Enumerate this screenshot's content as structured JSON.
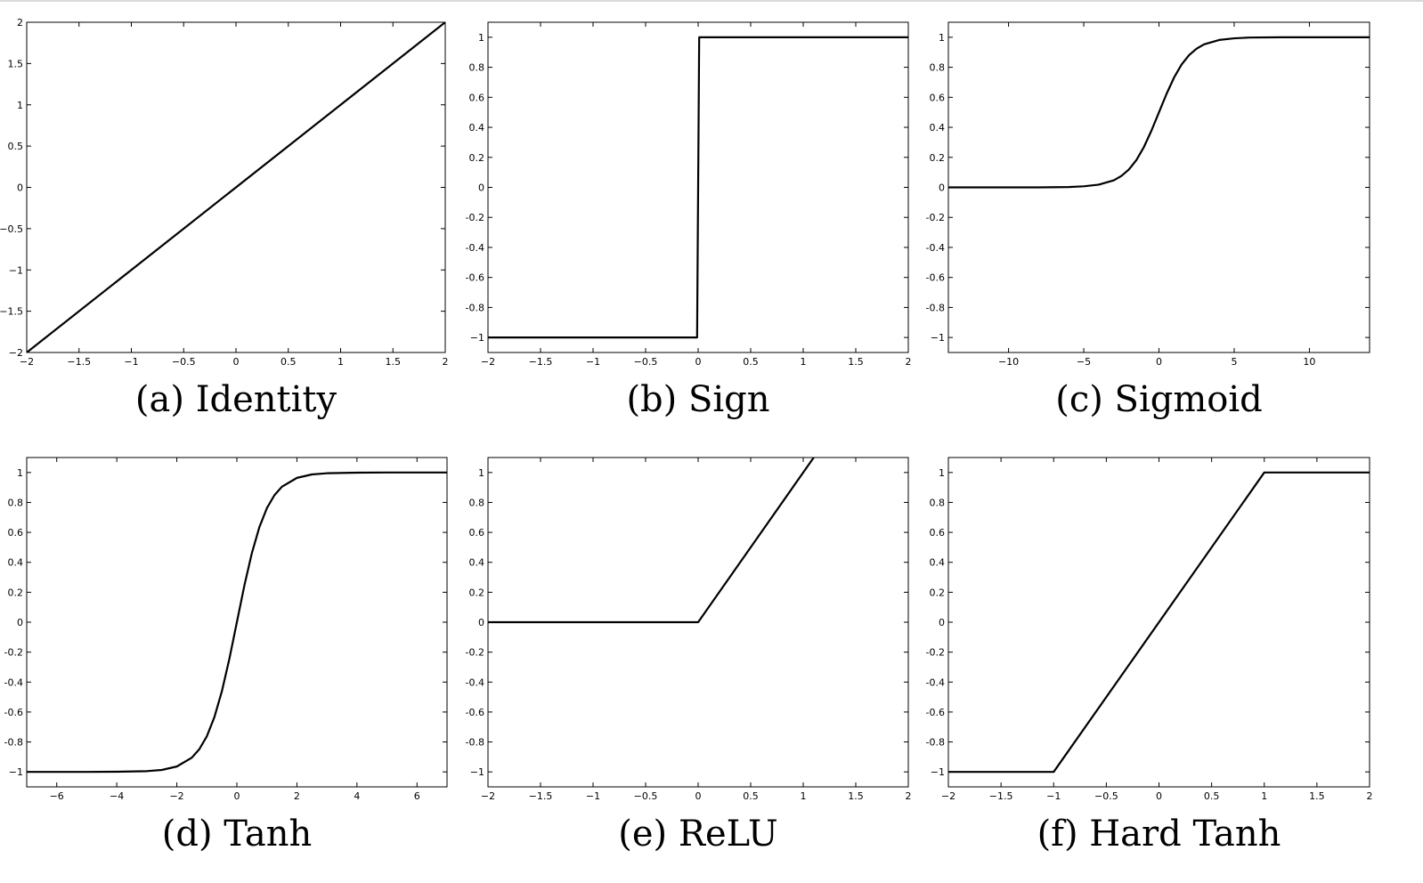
{
  "chart_data": [
    {
      "type": "line",
      "caption": "(a) Identity",
      "xlim": [
        -2,
        2
      ],
      "ylim": [
        -2,
        2
      ],
      "xticks": [
        -2,
        -1.5,
        -1,
        -0.5,
        0,
        0.5,
        1,
        1.5,
        2
      ],
      "xtick_labels": [
        "−2",
        "−1.5",
        "−1",
        "−0.5",
        "0",
        "0.5",
        "1",
        "1.5",
        "2"
      ],
      "yticks": [
        -2,
        -1.5,
        -1,
        -0.5,
        0,
        0.5,
        1,
        1.5,
        2
      ],
      "ytick_labels": [
        "−2",
        "−1.5",
        "−1",
        "−0.5",
        "0",
        "0.5",
        "1",
        "1.5",
        "2"
      ],
      "series": [
        {
          "x": [
            -2,
            2
          ],
          "y": [
            -2,
            2
          ]
        }
      ],
      "grid": false
    },
    {
      "type": "line",
      "caption": "(b) Sign",
      "xlim": [
        -2,
        2
      ],
      "ylim": [
        -1.1,
        1.1
      ],
      "xticks": [
        -2,
        -1.5,
        -1,
        -0.5,
        0,
        0.5,
        1,
        1.5,
        2
      ],
      "xtick_labels": [
        "−2",
        "−1.5",
        "−1",
        "−0.5",
        "0",
        "0.5",
        "1",
        "1.5",
        "2"
      ],
      "yticks": [
        -1,
        -0.8,
        -0.6,
        -0.4,
        -0.2,
        0,
        0.2,
        0.4,
        0.6,
        0.8,
        1
      ],
      "ytick_labels": [
        "−1",
        "-0.8",
        "-0.6",
        "-0.4",
        "-0.2",
        "0",
        "0.2",
        "0.4",
        "0.6",
        "0.8",
        "1"
      ],
      "series": [
        {
          "x": [
            -2,
            -0.01,
            0.01,
            2
          ],
          "y": [
            -1,
            -1,
            1,
            1
          ]
        }
      ],
      "grid": false
    },
    {
      "type": "line",
      "caption": "(c) Sigmoid",
      "xlim": [
        -14,
        14
      ],
      "ylim": [
        -1.1,
        1.1
      ],
      "xticks": [
        -10,
        -5,
        0,
        5,
        10
      ],
      "xtick_labels": [
        "−10",
        "−5",
        "0",
        "5",
        "10"
      ],
      "yticks": [
        -1,
        -0.8,
        -0.6,
        -0.4,
        -0.2,
        0,
        0.2,
        0.4,
        0.6,
        0.8,
        1
      ],
      "ytick_labels": [
        "−1",
        "-0.8",
        "-0.6",
        "-0.4",
        "-0.2",
        "0",
        "0.2",
        "0.4",
        "0.6",
        "0.8",
        "1"
      ],
      "series": [
        {
          "x": [
            -14,
            -10,
            -8,
            -6,
            -5,
            -4,
            -3,
            -2.5,
            -2,
            -1.5,
            -1,
            -0.5,
            0,
            0.5,
            1,
            1.5,
            2,
            2.5,
            3,
            4,
            5,
            6,
            8,
            10,
            14
          ],
          "y": [
            0,
            0,
            0,
            0.002,
            0.007,
            0.018,
            0.047,
            0.076,
            0.119,
            0.182,
            0.269,
            0.378,
            0.5,
            0.622,
            0.731,
            0.818,
            0.881,
            0.924,
            0.953,
            0.982,
            0.993,
            0.998,
            1,
            1,
            1
          ]
        }
      ],
      "grid": false
    },
    {
      "type": "line",
      "caption": "(d) Tanh",
      "xlim": [
        -7,
        7
      ],
      "ylim": [
        -1.1,
        1.1
      ],
      "xticks": [
        -6,
        -4,
        -2,
        0,
        2,
        4,
        6
      ],
      "xtick_labels": [
        "−6",
        "−4",
        "−2",
        "0",
        "2",
        "4",
        "6"
      ],
      "yticks": [
        -1,
        -0.8,
        -0.6,
        -0.4,
        -0.2,
        0,
        0.2,
        0.4,
        0.6,
        0.8,
        1
      ],
      "ytick_labels": [
        "−1",
        "-0.8",
        "-0.6",
        "-0.4",
        "-0.2",
        "0",
        "0.2",
        "0.4",
        "0.6",
        "0.8",
        "1"
      ],
      "series": [
        {
          "x": [
            -7,
            -5,
            -4,
            -3,
            -2.5,
            -2,
            -1.5,
            -1.25,
            -1,
            -0.75,
            -0.5,
            -0.25,
            0,
            0.25,
            0.5,
            0.75,
            1,
            1.25,
            1.5,
            2,
            2.5,
            3,
            4,
            5,
            7
          ],
          "y": [
            -1,
            -1,
            -0.999,
            -0.995,
            -0.987,
            -0.964,
            -0.905,
            -0.848,
            -0.762,
            -0.635,
            -0.462,
            -0.245,
            0,
            0.245,
            0.462,
            0.635,
            0.762,
            0.848,
            0.905,
            0.964,
            0.987,
            0.995,
            0.999,
            1,
            1
          ]
        }
      ],
      "grid": false
    },
    {
      "type": "line",
      "caption": "(e) ReLU",
      "xlim": [
        -2,
        2
      ],
      "ylim": [
        -1.1,
        1.1
      ],
      "xticks": [
        -2,
        -1.5,
        -1,
        -0.5,
        0,
        0.5,
        1,
        1.5,
        2
      ],
      "xtick_labels": [
        "−2",
        "−1.5",
        "−1",
        "−0.5",
        "0",
        "0.5",
        "1",
        "1.5",
        "2"
      ],
      "yticks": [
        -1,
        -0.8,
        -0.6,
        -0.4,
        -0.2,
        0,
        0.2,
        0.4,
        0.6,
        0.8,
        1
      ],
      "ytick_labels": [
        "−1",
        "-0.8",
        "-0.6",
        "-0.4",
        "-0.2",
        "0",
        "0.2",
        "0.4",
        "0.6",
        "0.8",
        "1"
      ],
      "series": [
        {
          "x": [
            -2,
            0,
            1.1
          ],
          "y": [
            0,
            0,
            1.1
          ]
        }
      ],
      "grid": false
    },
    {
      "type": "line",
      "caption": "(f) Hard Tanh",
      "xlim": [
        -2,
        2
      ],
      "ylim": [
        -1.1,
        1.1
      ],
      "xticks": [
        -2,
        -1.5,
        -1,
        -0.5,
        0,
        0.5,
        1,
        1.5,
        2
      ],
      "xtick_labels": [
        "−2",
        "−1.5",
        "−1",
        "−0.5",
        "0",
        "0.5",
        "1",
        "1.5",
        "2"
      ],
      "yticks": [
        -1,
        -0.8,
        -0.6,
        -0.4,
        -0.2,
        0,
        0.2,
        0.4,
        0.6,
        0.8,
        1
      ],
      "ytick_labels": [
        "−1",
        "-0.8",
        "-0.6",
        "-0.4",
        "-0.2",
        "0",
        "0.2",
        "0.4",
        "0.6",
        "0.8",
        "1"
      ],
      "series": [
        {
          "x": [
            -2,
            -1,
            1,
            2
          ],
          "y": [
            -1,
            -1,
            1,
            1
          ]
        }
      ],
      "grid": false
    }
  ]
}
